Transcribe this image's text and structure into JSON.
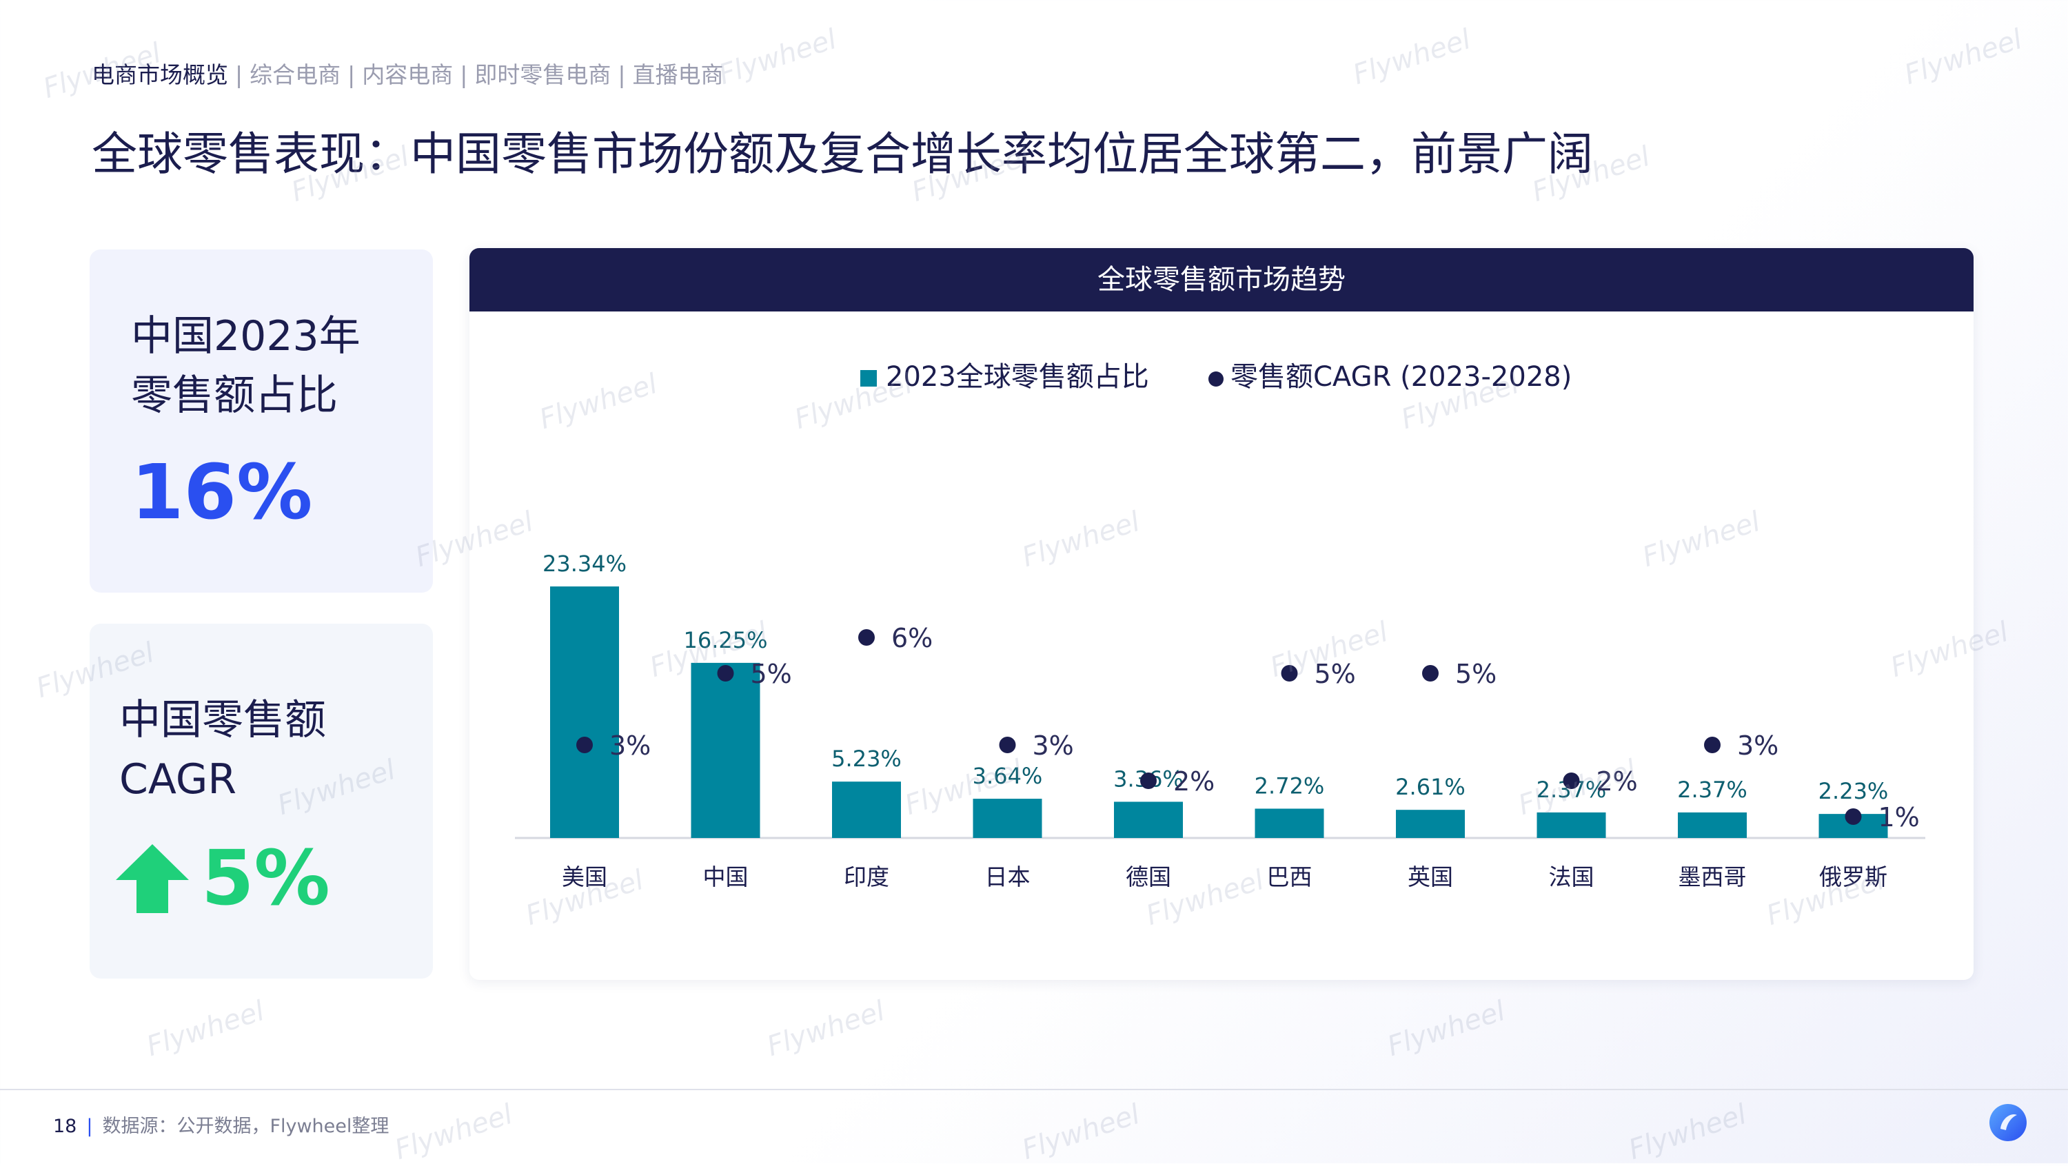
{
  "nav": {
    "items": [
      "电商市场概览",
      "综合电商",
      "内容电商",
      "即时零售电商",
      "直播电商"
    ],
    "separator": "|"
  },
  "title": "全球零售表现：中国零售市场份额及复合增长率均位居全球第二，前景广阔",
  "card1": {
    "title_line1": "中国2023年",
    "title_line2": "零售额占比",
    "value": "16%"
  },
  "card2": {
    "title_line1": "中国零售额",
    "title_line2": "CAGR",
    "value": "5%"
  },
  "watermark": "Flywheel",
  "footer": {
    "page": "18",
    "source": "数据源：公开数据，Flywheel整理"
  },
  "colors": {
    "navy": "#1b1d4e",
    "teal": "#00869e",
    "blue": "#2a4ff0",
    "green": "#1fd07a"
  },
  "chart_data": {
    "type": "bar",
    "title": "全球零售额市场趋势",
    "categories": [
      "美国",
      "中国",
      "印度",
      "日本",
      "德国",
      "巴西",
      "英国",
      "法国",
      "墨西哥",
      "俄罗斯"
    ],
    "series": [
      {
        "name": "2023全球零售额占比",
        "kind": "bar",
        "values": [
          23.34,
          16.25,
          5.23,
          3.64,
          3.36,
          2.72,
          2.61,
          2.37,
          2.37,
          2.23
        ],
        "labels": [
          "23.34%",
          "16.25%",
          "5.23%",
          "3.64%",
          "3.36%",
          "2.72%",
          "2.61%",
          "2.37%",
          "2.37%",
          "2.23%"
        ]
      },
      {
        "name": "零售额CAGR (2023-2028)",
        "kind": "scatter",
        "values": [
          3,
          5,
          6,
          3,
          2,
          5,
          5,
          2,
          3,
          1
        ],
        "labels": [
          "3%",
          "5%",
          "6%",
          "3%",
          "2%",
          "5%",
          "5%",
          "2%",
          "3%",
          "1%"
        ]
      }
    ],
    "legend_position": "top-center"
  }
}
